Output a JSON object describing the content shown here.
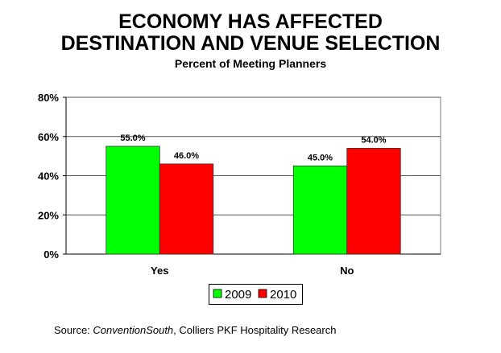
{
  "chart_data": {
    "type": "bar",
    "title": [
      "ECONOMY HAS AFFECTED",
      "DESTINATION AND VENUE SELECTION"
    ],
    "subtitle": "Percent of Meeting Planners",
    "categories": [
      "Yes",
      "No"
    ],
    "series": [
      {
        "name": "2009",
        "color": "#00ff00",
        "values": [
          55.0,
          45.0
        ],
        "labels": [
          "55.0%",
          "45.0%"
        ]
      },
      {
        "name": "2010",
        "color": "#ff0000",
        "values": [
          46.0,
          54.0
        ],
        "labels": [
          "46.0%",
          "54.0%"
        ]
      }
    ],
    "ylim": [
      0,
      80
    ],
    "yticks": [
      0,
      20,
      40,
      60,
      80
    ],
    "ytick_labels": [
      "0%",
      "20%",
      "40%",
      "60%",
      "80%"
    ],
    "xlabel": "",
    "ylabel": "",
    "grid": true,
    "legend_position": "bottom-center"
  },
  "source": {
    "prefix": "Source: ",
    "italic": "ConventionSouth",
    "suffix": ", Colliers PKF Hospitality Research"
  }
}
